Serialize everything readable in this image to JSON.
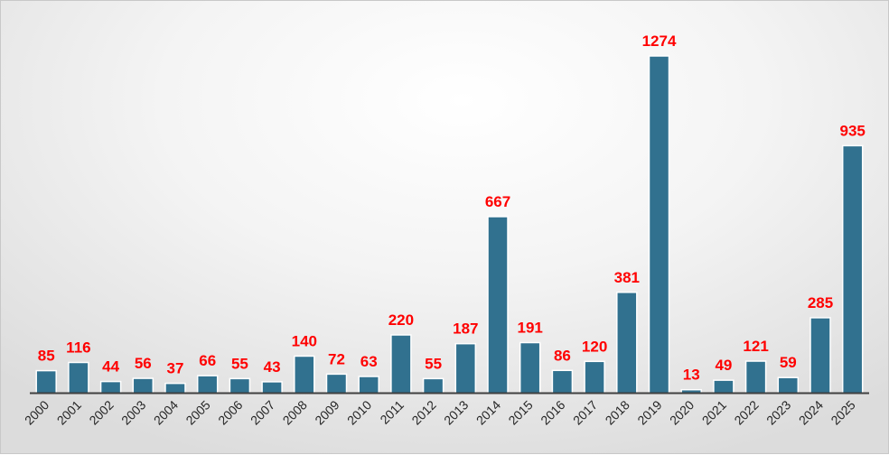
{
  "chart_data": {
    "type": "bar",
    "title": "",
    "xlabel": "",
    "ylabel": "",
    "categories": [
      "2000",
      "2001",
      "2002",
      "2003",
      "2004",
      "2005",
      "2006",
      "2007",
      "2008",
      "2009",
      "2010",
      "2011",
      "2012",
      "2013",
      "2014",
      "2015",
      "2016",
      "2017",
      "2018",
      "2019",
      "2020",
      "2021",
      "2022",
      "2023",
      "2024",
      "2025"
    ],
    "values": [
      85,
      116,
      44,
      56,
      37,
      66,
      55,
      43,
      140,
      72,
      63,
      220,
      55,
      187,
      667,
      191,
      86,
      120,
      381,
      1274,
      13,
      49,
      121,
      59,
      285,
      935
    ],
    "ylim": [
      0,
      1274
    ],
    "grid": false,
    "legend": "none",
    "data_labels": true,
    "x_tick_rotation": -45,
    "colors": {
      "bar": "#31718f",
      "data_label": "#ff0000",
      "axis": "#404040",
      "tick_text": "#262626"
    }
  }
}
